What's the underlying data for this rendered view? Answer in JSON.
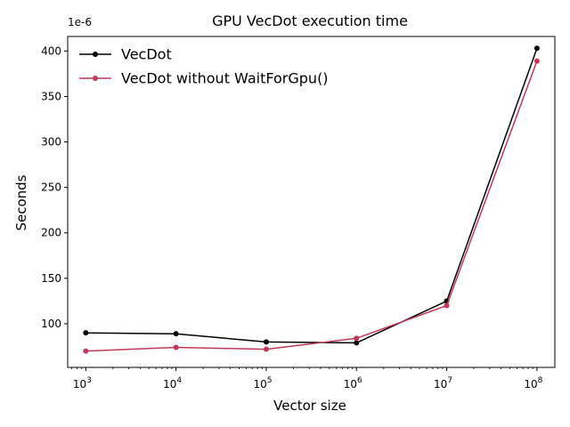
{
  "chart_data": {
    "type": "line",
    "title": "GPU VecDot execution time",
    "xlabel": "Vector size",
    "ylabel": "Seconds",
    "y_offset_label": "1e-6",
    "x_scale": "log",
    "xlim": [
      630,
      158000000
    ],
    "ylim": [
      52,
      416
    ],
    "x": [
      1000,
      10000,
      100000,
      1000000,
      10000000,
      100000000
    ],
    "x_ticks": [
      {
        "base": "10",
        "exp": "3",
        "value": 1000
      },
      {
        "base": "10",
        "exp": "4",
        "value": 10000
      },
      {
        "base": "10",
        "exp": "5",
        "value": 100000
      },
      {
        "base": "10",
        "exp": "6",
        "value": 1000000
      },
      {
        "base": "10",
        "exp": "7",
        "value": 10000000
      },
      {
        "base": "10",
        "exp": "8",
        "value": 100000000
      }
    ],
    "y_ticks": [
      "100",
      "150",
      "200",
      "250",
      "300",
      "350",
      "400"
    ],
    "series": [
      {
        "name": "VecDot",
        "color": "#000000",
        "values": [
          90,
          89,
          80,
          79,
          125,
          403
        ]
      },
      {
        "name": "VecDot without WaitForGpu()",
        "color": "#c0395a",
        "values": [
          70,
          74,
          72,
          84,
          120,
          389
        ]
      }
    ],
    "legend_position": "top-left",
    "grid": false
  }
}
